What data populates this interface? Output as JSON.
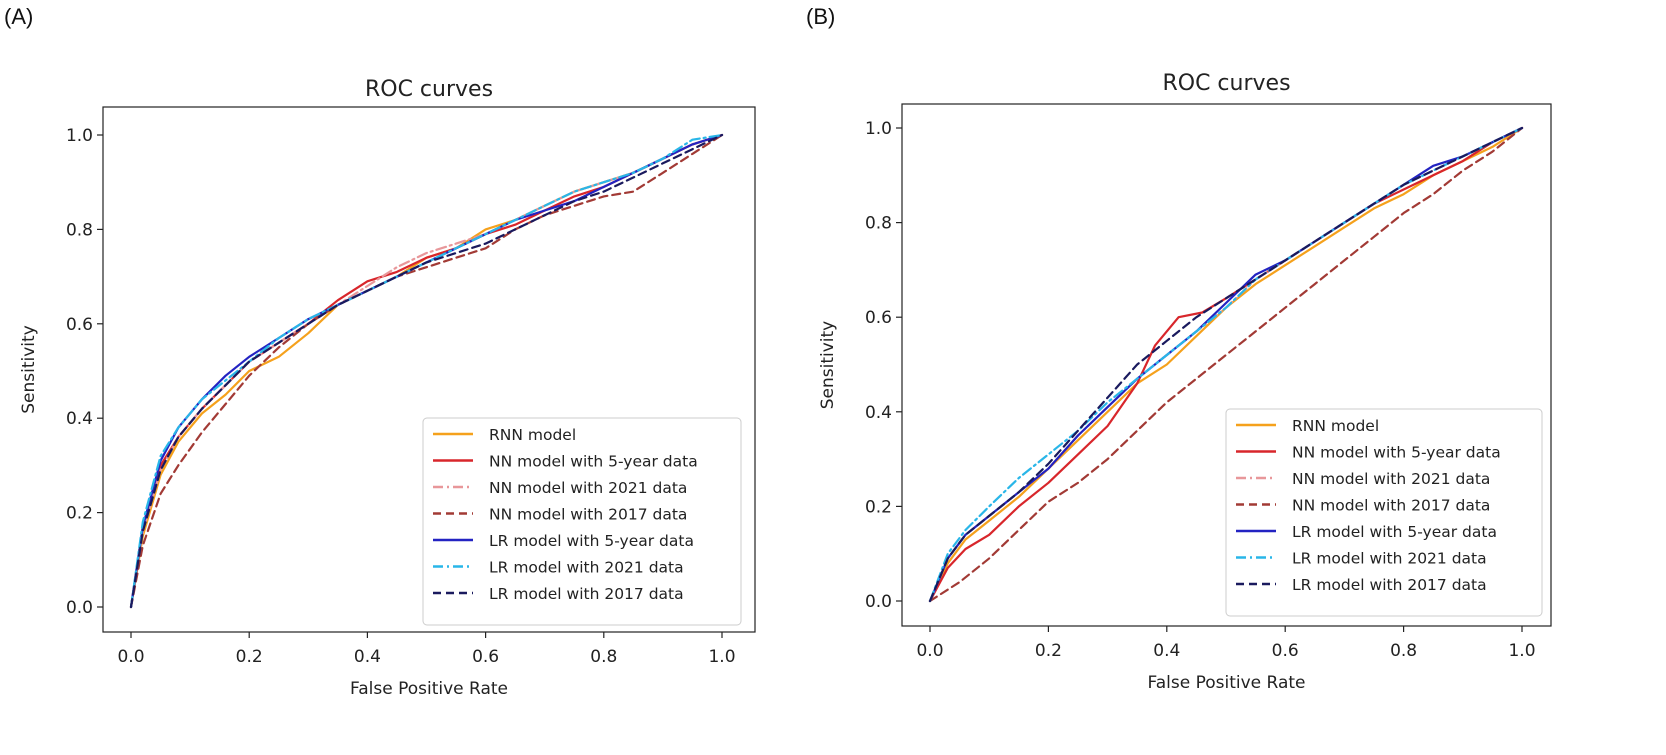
{
  "panels": [
    {
      "label": "(A)"
    },
    {
      "label": "(B)"
    }
  ],
  "series_styles": [
    {
      "name": "RNN model",
      "color": "#f5a11c",
      "dash": ""
    },
    {
      "name": "NN model with 5-year data",
      "color": "#d8262b",
      "dash": ""
    },
    {
      "name": "NN model with 2021 data",
      "color": "#e8979a",
      "dash": "10,4,2,4"
    },
    {
      "name": "NN model with 2017 data",
      "color": "#a23a35",
      "dash": "8,5"
    },
    {
      "name": "LR model with 5-year data",
      "color": "#2323c2",
      "dash": ""
    },
    {
      "name": "LR model with 2021 data",
      "color": "#29b6e8",
      "dash": "10,4,2,4"
    },
    {
      "name": "LR model with 2017 data",
      "color": "#1a1a5e",
      "dash": "8,5"
    }
  ],
  "chart_data": [
    {
      "type": "line",
      "title": "ROC curves",
      "xlabel": "False Positive Rate",
      "ylabel": "Sensitivity",
      "xlim": [
        0,
        1
      ],
      "ylim": [
        0,
        1
      ],
      "xticks": [
        "0.0",
        "0.2",
        "0.4",
        "0.6",
        "0.8",
        "1.0"
      ],
      "yticks": [
        "0.0",
        "0.2",
        "0.4",
        "0.6",
        "0.8",
        "1.0"
      ],
      "legend_position": "lower-right",
      "series": [
        {
          "name": "RNN model",
          "x": [
            0,
            0.02,
            0.05,
            0.08,
            0.12,
            0.16,
            0.2,
            0.25,
            0.3,
            0.35,
            0.4,
            0.45,
            0.5,
            0.55,
            0.6,
            0.65,
            0.7,
            0.75,
            0.8,
            0.85,
            0.9,
            0.95,
            1.0
          ],
          "y": [
            0,
            0.15,
            0.28,
            0.35,
            0.41,
            0.45,
            0.5,
            0.53,
            0.58,
            0.64,
            0.67,
            0.7,
            0.74,
            0.76,
            0.8,
            0.82,
            0.85,
            0.88,
            0.9,
            0.92,
            0.95,
            0.98,
            1.0
          ]
        },
        {
          "name": "NN model with 5-year data",
          "x": [
            0,
            0.02,
            0.05,
            0.08,
            0.12,
            0.16,
            0.2,
            0.25,
            0.3,
            0.35,
            0.4,
            0.45,
            0.5,
            0.55,
            0.6,
            0.65,
            0.7,
            0.75,
            0.8,
            0.85,
            0.9,
            0.95,
            1.0
          ],
          "y": [
            0,
            0.17,
            0.3,
            0.36,
            0.42,
            0.47,
            0.52,
            0.56,
            0.6,
            0.65,
            0.69,
            0.71,
            0.74,
            0.76,
            0.79,
            0.81,
            0.84,
            0.87,
            0.89,
            0.92,
            0.95,
            0.98,
            1.0
          ]
        },
        {
          "name": "NN model with 2021 data",
          "x": [
            0,
            0.02,
            0.05,
            0.08,
            0.12,
            0.16,
            0.2,
            0.25,
            0.3,
            0.35,
            0.4,
            0.45,
            0.5,
            0.55,
            0.6,
            0.65,
            0.7,
            0.75,
            0.8,
            0.85,
            0.9,
            0.95,
            1.0
          ],
          "y": [
            0,
            0.16,
            0.29,
            0.36,
            0.42,
            0.47,
            0.52,
            0.56,
            0.6,
            0.64,
            0.68,
            0.72,
            0.75,
            0.77,
            0.79,
            0.82,
            0.85,
            0.88,
            0.9,
            0.92,
            0.95,
            0.98,
            1.0
          ]
        },
        {
          "name": "NN model with 2017 data",
          "x": [
            0,
            0.02,
            0.05,
            0.08,
            0.12,
            0.16,
            0.2,
            0.25,
            0.3,
            0.35,
            0.4,
            0.45,
            0.5,
            0.55,
            0.6,
            0.65,
            0.7,
            0.75,
            0.8,
            0.85,
            0.9,
            0.95,
            1.0
          ],
          "y": [
            0,
            0.13,
            0.24,
            0.3,
            0.37,
            0.43,
            0.49,
            0.55,
            0.6,
            0.64,
            0.67,
            0.7,
            0.72,
            0.74,
            0.76,
            0.8,
            0.83,
            0.85,
            0.87,
            0.88,
            0.92,
            0.96,
            1.0
          ]
        },
        {
          "name": "LR model with 5-year data",
          "x": [
            0,
            0.02,
            0.05,
            0.08,
            0.12,
            0.16,
            0.2,
            0.25,
            0.3,
            0.35,
            0.4,
            0.45,
            0.5,
            0.55,
            0.6,
            0.65,
            0.7,
            0.75,
            0.8,
            0.85,
            0.9,
            0.95,
            1.0
          ],
          "y": [
            0,
            0.17,
            0.31,
            0.38,
            0.44,
            0.49,
            0.53,
            0.57,
            0.61,
            0.64,
            0.67,
            0.7,
            0.73,
            0.76,
            0.79,
            0.82,
            0.84,
            0.86,
            0.89,
            0.92,
            0.95,
            0.98,
            1.0
          ]
        },
        {
          "name": "LR model with 2021 data",
          "x": [
            0,
            0.02,
            0.05,
            0.08,
            0.12,
            0.16,
            0.2,
            0.25,
            0.3,
            0.35,
            0.4,
            0.45,
            0.5,
            0.55,
            0.6,
            0.65,
            0.7,
            0.75,
            0.8,
            0.85,
            0.9,
            0.95,
            1.0
          ],
          "y": [
            0,
            0.18,
            0.32,
            0.38,
            0.44,
            0.48,
            0.52,
            0.57,
            0.61,
            0.64,
            0.67,
            0.7,
            0.73,
            0.76,
            0.79,
            0.82,
            0.85,
            0.88,
            0.9,
            0.92,
            0.95,
            0.99,
            1.0
          ]
        },
        {
          "name": "LR model with 2017 data",
          "x": [
            0,
            0.02,
            0.05,
            0.08,
            0.12,
            0.16,
            0.2,
            0.25,
            0.3,
            0.35,
            0.4,
            0.45,
            0.5,
            0.55,
            0.6,
            0.65,
            0.7,
            0.75,
            0.8,
            0.85,
            0.9,
            0.95,
            1.0
          ],
          "y": [
            0,
            0.16,
            0.29,
            0.36,
            0.42,
            0.47,
            0.52,
            0.56,
            0.6,
            0.64,
            0.67,
            0.7,
            0.73,
            0.75,
            0.77,
            0.8,
            0.83,
            0.86,
            0.88,
            0.91,
            0.94,
            0.97,
            1.0
          ]
        }
      ]
    },
    {
      "type": "line",
      "title": "ROC curves",
      "xlabel": "False Positive Rate",
      "ylabel": "Sensitivity",
      "xlim": [
        0,
        1
      ],
      "ylim": [
        0,
        1
      ],
      "xticks": [
        "0.0",
        "0.2",
        "0.4",
        "0.6",
        "0.8",
        "1.0"
      ],
      "yticks": [
        "0.0",
        "0.2",
        "0.4",
        "0.6",
        "0.8",
        "1.0"
      ],
      "legend_position": "lower-right",
      "series": [
        {
          "name": "RNN model",
          "x": [
            0,
            0.03,
            0.06,
            0.1,
            0.15,
            0.2,
            0.25,
            0.3,
            0.35,
            0.4,
            0.45,
            0.5,
            0.55,
            0.6,
            0.65,
            0.7,
            0.75,
            0.8,
            0.85,
            0.9,
            0.95,
            1.0
          ],
          "y": [
            0,
            0.08,
            0.13,
            0.17,
            0.22,
            0.28,
            0.34,
            0.4,
            0.46,
            0.5,
            0.56,
            0.62,
            0.67,
            0.71,
            0.75,
            0.79,
            0.83,
            0.86,
            0.9,
            0.93,
            0.96,
            1.0
          ]
        },
        {
          "name": "NN model with 5-year data",
          "x": [
            0,
            0.03,
            0.06,
            0.1,
            0.15,
            0.2,
            0.25,
            0.3,
            0.35,
            0.38,
            0.42,
            0.46,
            0.5,
            0.55,
            0.6,
            0.65,
            0.7,
            0.75,
            0.8,
            0.85,
            0.9,
            0.95,
            1.0
          ],
          "y": [
            0,
            0.07,
            0.11,
            0.14,
            0.2,
            0.25,
            0.31,
            0.37,
            0.46,
            0.54,
            0.6,
            0.61,
            0.64,
            0.68,
            0.72,
            0.76,
            0.8,
            0.84,
            0.87,
            0.9,
            0.93,
            0.97,
            1.0
          ]
        },
        {
          "name": "NN model with 2021 data",
          "x": [
            0,
            0.03,
            0.06,
            0.1,
            0.15,
            0.2,
            0.25,
            0.3,
            0.35,
            0.4,
            0.45,
            0.5,
            0.55,
            0.6,
            0.65,
            0.7,
            0.75,
            0.8,
            0.85,
            0.9,
            0.95,
            1.0
          ],
          "y": [
            0,
            0.09,
            0.14,
            0.18,
            0.23,
            0.28,
            0.35,
            0.41,
            0.47,
            0.52,
            0.57,
            0.62,
            0.68,
            0.72,
            0.76,
            0.8,
            0.84,
            0.88,
            0.91,
            0.94,
            0.97,
            1.0
          ]
        },
        {
          "name": "NN model with 2017 data",
          "x": [
            0,
            0.05,
            0.1,
            0.15,
            0.2,
            0.25,
            0.3,
            0.35,
            0.4,
            0.45,
            0.5,
            0.55,
            0.6,
            0.65,
            0.7,
            0.75,
            0.8,
            0.85,
            0.9,
            0.95,
            1.0
          ],
          "y": [
            0,
            0.04,
            0.09,
            0.15,
            0.21,
            0.25,
            0.3,
            0.36,
            0.42,
            0.47,
            0.52,
            0.57,
            0.62,
            0.67,
            0.72,
            0.77,
            0.82,
            0.86,
            0.91,
            0.95,
            1.0
          ]
        },
        {
          "name": "LR model with 5-year data",
          "x": [
            0,
            0.03,
            0.06,
            0.1,
            0.15,
            0.2,
            0.25,
            0.3,
            0.35,
            0.4,
            0.45,
            0.5,
            0.55,
            0.6,
            0.65,
            0.7,
            0.75,
            0.8,
            0.85,
            0.9,
            0.95,
            1.0
          ],
          "y": [
            0,
            0.09,
            0.14,
            0.18,
            0.23,
            0.28,
            0.35,
            0.41,
            0.47,
            0.52,
            0.57,
            0.63,
            0.69,
            0.72,
            0.76,
            0.8,
            0.84,
            0.88,
            0.92,
            0.94,
            0.97,
            1.0
          ]
        },
        {
          "name": "LR model with 2021 data",
          "x": [
            0,
            0.03,
            0.06,
            0.1,
            0.15,
            0.2,
            0.25,
            0.3,
            0.35,
            0.4,
            0.45,
            0.5,
            0.55,
            0.6,
            0.65,
            0.7,
            0.75,
            0.8,
            0.85,
            0.9,
            0.95,
            1.0
          ],
          "y": [
            0,
            0.1,
            0.15,
            0.2,
            0.26,
            0.31,
            0.36,
            0.42,
            0.47,
            0.52,
            0.57,
            0.62,
            0.68,
            0.72,
            0.76,
            0.8,
            0.84,
            0.88,
            0.91,
            0.94,
            0.97,
            1.0
          ]
        },
        {
          "name": "LR model with 2017 data",
          "x": [
            0,
            0.03,
            0.06,
            0.1,
            0.15,
            0.2,
            0.25,
            0.3,
            0.35,
            0.4,
            0.45,
            0.5,
            0.55,
            0.6,
            0.65,
            0.7,
            0.75,
            0.8,
            0.85,
            0.9,
            0.95,
            1.0
          ],
          "y": [
            0,
            0.09,
            0.14,
            0.18,
            0.23,
            0.29,
            0.36,
            0.43,
            0.5,
            0.55,
            0.6,
            0.64,
            0.68,
            0.72,
            0.76,
            0.8,
            0.84,
            0.88,
            0.91,
            0.94,
            0.97,
            1.0
          ]
        }
      ]
    }
  ]
}
